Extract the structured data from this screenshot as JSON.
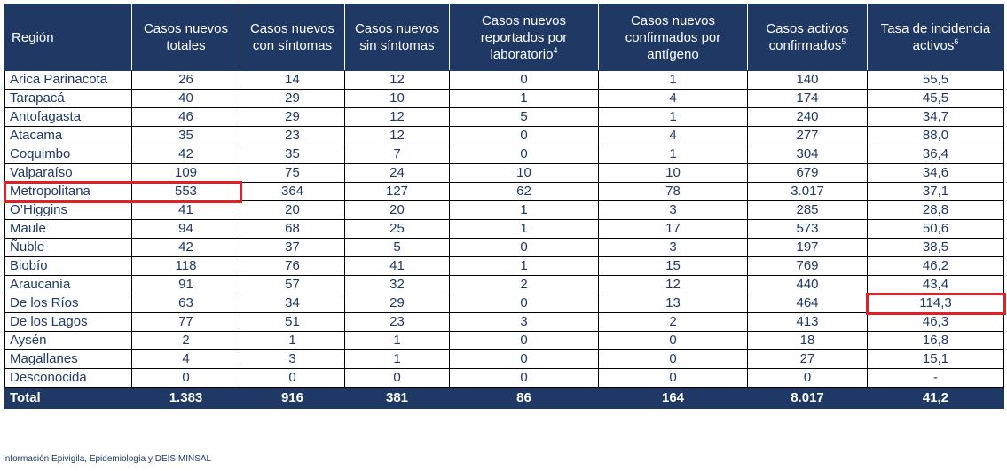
{
  "headers": [
    {
      "text": "Región",
      "sup": ""
    },
    {
      "text": "Casos nuevos totales",
      "sup": ""
    },
    {
      "text": "Casos nuevos con síntomas",
      "sup": ""
    },
    {
      "text": "Casos nuevos sin síntomas",
      "sup": ""
    },
    {
      "text": "Casos nuevos reportados por laboratorio",
      "sup": "4"
    },
    {
      "text": "Casos nuevos confirmados por antígeno",
      "sup": ""
    },
    {
      "text": "Casos activos confirmados",
      "sup": "5"
    },
    {
      "text": "Tasa de incidencia activos",
      "sup": "6"
    }
  ],
  "rows": [
    [
      "Arica Parinacota",
      "26",
      "14",
      "12",
      "0",
      "1",
      "140",
      "55,5"
    ],
    [
      "Tarapacá",
      "40",
      "29",
      "10",
      "1",
      "4",
      "174",
      "45,5"
    ],
    [
      "Antofagasta",
      "46",
      "29",
      "12",
      "5",
      "1",
      "240",
      "34,7"
    ],
    [
      "Atacama",
      "35",
      "23",
      "12",
      "0",
      "4",
      "277",
      "88,0"
    ],
    [
      "Coquimbo",
      "42",
      "35",
      "7",
      "0",
      "1",
      "304",
      "36,4"
    ],
    [
      "Valparaíso",
      "109",
      "75",
      "24",
      "10",
      "10",
      "679",
      "34,6"
    ],
    [
      "Metropolitana",
      "553",
      "364",
      "127",
      "62",
      "78",
      "3.017",
      "37,1"
    ],
    [
      "O’Higgins",
      "41",
      "20",
      "20",
      "1",
      "3",
      "285",
      "28,8"
    ],
    [
      "Maule",
      "94",
      "68",
      "25",
      "1",
      "17",
      "573",
      "50,6"
    ],
    [
      "Ñuble",
      "42",
      "37",
      "5",
      "0",
      "3",
      "197",
      "38,5"
    ],
    [
      "Biobío",
      "118",
      "76",
      "41",
      "1",
      "15",
      "769",
      "46,2"
    ],
    [
      "Araucanía",
      "91",
      "57",
      "32",
      "2",
      "12",
      "440",
      "43,4"
    ],
    [
      "De los Ríos",
      "63",
      "34",
      "29",
      "0",
      "13",
      "464",
      "114,3"
    ],
    [
      "De los Lagos",
      "77",
      "51",
      "23",
      "3",
      "2",
      "413",
      "46,3"
    ],
    [
      "Aysén",
      "2",
      "1",
      "1",
      "0",
      "0",
      "18",
      "16,8"
    ],
    [
      "Magallanes",
      "4",
      "3",
      "1",
      "0",
      "0",
      "27",
      "15,1"
    ],
    [
      "Desconocida",
      "0",
      "0",
      "0",
      "0",
      "0",
      "0",
      "-"
    ]
  ],
  "total": [
    "Total",
    "1.383",
    "916",
    "381",
    "86",
    "164",
    "8.017",
    "41,2"
  ],
  "highlights": [
    {
      "row": 6,
      "col_start": 0,
      "col_end": 1
    },
    {
      "row": 12,
      "col_start": 7,
      "col_end": 7
    }
  ],
  "footer": "Información Epivigila, Epidemiología y DEIS MINSAL",
  "colors": {
    "header_bg": "#1f3864",
    "text": "#1f3864",
    "highlight": "#e11f26"
  }
}
